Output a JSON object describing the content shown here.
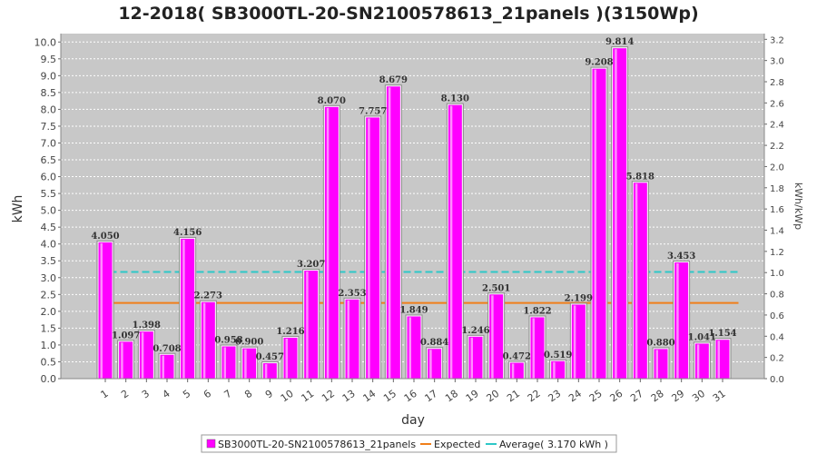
{
  "chart_data": {
    "type": "bar",
    "title": "12-2018( SB3000TL-20-SN2100578613_21panels )(3150Wp)",
    "xlabel": "day",
    "ylabel": "kWh",
    "ylabel_right": "kWh/kWp",
    "ylim": [
      0,
      10.25
    ],
    "ylim_right": [
      0,
      3.254
    ],
    "yticks": [
      "0.0",
      "0.5",
      "1.0",
      "1.5",
      "2.0",
      "2.5",
      "3.0",
      "3.5",
      "4.0",
      "4.5",
      "5.0",
      "5.5",
      "6.0",
      "6.5",
      "7.0",
      "7.5",
      "8.0",
      "8.5",
      "9.0",
      "9.5",
      "10.0"
    ],
    "yticks_right": [
      "0.0",
      "0.2",
      "0.4",
      "0.6",
      "0.8",
      "1.0",
      "1.2",
      "1.4",
      "1.6",
      "1.8",
      "2.0",
      "2.2",
      "2.4",
      "2.6",
      "2.8",
      "3.0",
      "3.2"
    ],
    "categories": [
      "1",
      "2",
      "3",
      "4",
      "5",
      "6",
      "7",
      "8",
      "9",
      "10",
      "11",
      "12",
      "13",
      "14",
      "15",
      "16",
      "17",
      "18",
      "19",
      "20",
      "21",
      "22",
      "23",
      "24",
      "25",
      "26",
      "27",
      "28",
      "29",
      "30",
      "31"
    ],
    "series": [
      {
        "name": "SB3000TL-20-SN2100578613_21panels",
        "color": "#ff00ff",
        "values": [
          4.05,
          1.097,
          1.398,
          0.708,
          4.156,
          2.273,
          0.958,
          0.9,
          0.457,
          1.216,
          3.207,
          8.07,
          2.353,
          7.757,
          8.679,
          1.849,
          0.884,
          8.13,
          1.246,
          2.501,
          0.472,
          1.822,
          0.519,
          2.199,
          9.208,
          9.814,
          5.818,
          0.88,
          3.453,
          1.041,
          1.154
        ],
        "labels": [
          "4.050",
          "1.097",
          "1.398",
          "0.708",
          "4.156",
          "2.273",
          "0.958",
          "0.900",
          "0.457",
          "1.216",
          "3.207",
          "8.070",
          "2.353",
          "7.757",
          "8.679",
          "1.849",
          "0.884",
          "8.130",
          "1.246",
          "2.501",
          "0.472",
          "1.822",
          "0.519",
          "2.199",
          "9.208",
          "9.814",
          "5.818",
          "0.880",
          "3.453",
          "1.041",
          "1.154"
        ]
      }
    ],
    "lines": [
      {
        "name": "Expected",
        "color": "#f07f1a",
        "value": 2.25,
        "style": "solid"
      },
      {
        "name": "Average( 3.170 kWh )",
        "color": "#2ec8c8",
        "value": 3.17,
        "style": "dashed"
      }
    ],
    "grid": true,
    "legend": "bottom-center",
    "plot_background": "#c8c8c8"
  }
}
